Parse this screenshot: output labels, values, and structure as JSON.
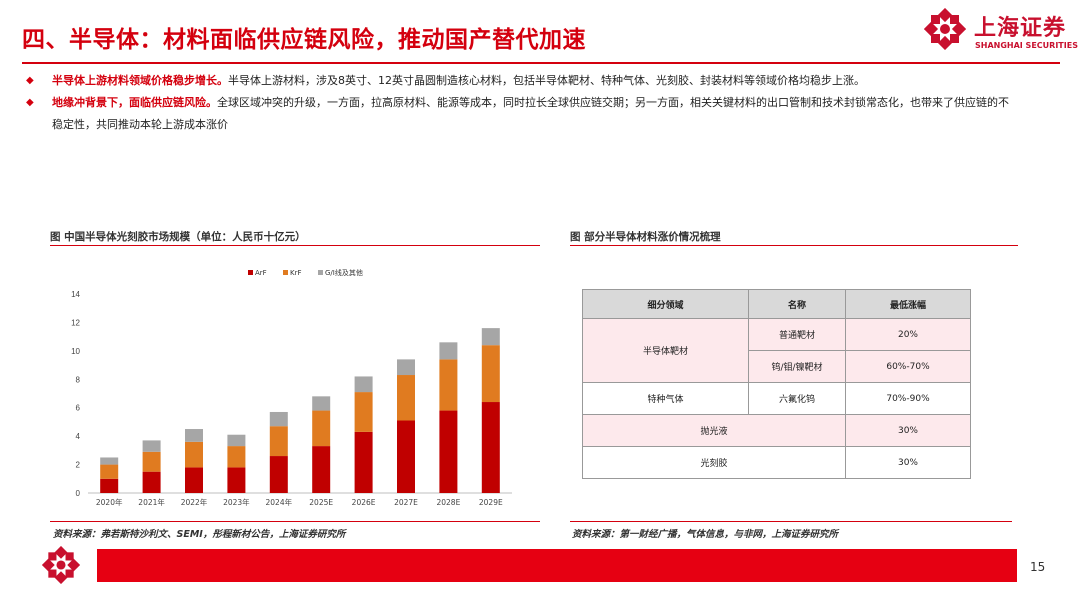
{
  "header": {
    "title": "四、半导体：材料面临供应链风险，推动国产替代加速",
    "logo_cn": "上海证券",
    "logo_en": "SHANGHAI SECURITIES"
  },
  "bullets": [
    {
      "marker": "◆",
      "headline": "半导体上游材料领域价格稳步增长。",
      "text": "半导体上游材料，涉及8英寸、12英寸晶圆制造核心材料，包括半导体靶材、特种气体、光刻胶、封装材料等领域价格均稳步上涨。"
    },
    {
      "marker": "◆",
      "headline": "地缘冲背景下，面临供应链风险。",
      "text": "全球区域冲突的升级，一方面，拉高原材料、能源等成本，同时拉长全球供应链交期；另一方面，相关关键材料的出口管制和技术封锁常态化，也带来了供应链的不稳定性，共同推动本轮上游成本涨价"
    }
  ],
  "left_panel": {
    "caption": "图  中国半导体光刻胶市场规模（单位：人民币十亿元）",
    "source": "资料来源：弗若斯特沙利文、SEMI，彤程新材公告，上海证券研究所"
  },
  "right_panel": {
    "caption": "图  部分半导体材料涨价情况梳理",
    "source": "资料来源：第一财经广播，气体信息，与非网，上海证券研究所",
    "table": {
      "headers": [
        "细分领域",
        "名称",
        "最低涨幅"
      ],
      "groups": [
        {
          "segment": "半导体靶材",
          "rows": [
            {
              "name": "普通靶材",
              "rise": "20%"
            },
            {
              "name": "钨/钼/镍靶材",
              "rise": "60%-70%"
            }
          ]
        },
        {
          "segment": "特种气体",
          "rows": [
            {
              "name": "六氟化钨",
              "rise": "70%-90%"
            }
          ]
        },
        {
          "segment": "抛光液",
          "rows": [
            {
              "name": "",
              "rise": "30%"
            }
          ]
        },
        {
          "segment": "光刻胶",
          "rows": [
            {
              "name": "",
              "rise": "30%"
            }
          ]
        }
      ]
    }
  },
  "chart_data": {
    "type": "bar",
    "stacked": true,
    "categories": [
      "2020年",
      "2021年",
      "2022年",
      "2023年",
      "2024年",
      "2025E",
      "2026E",
      "2027E",
      "2028E",
      "2029E"
    ],
    "series": [
      {
        "name": "ArF",
        "color": "#c00000",
        "values": [
          1.0,
          1.5,
          1.8,
          1.8,
          2.6,
          3.3,
          4.3,
          5.1,
          5.8,
          6.4
        ]
      },
      {
        "name": "KrF",
        "color": "#e07b20",
        "values": [
          1.0,
          1.4,
          1.8,
          1.5,
          2.1,
          2.5,
          2.8,
          3.2,
          3.6,
          4.0
        ]
      },
      {
        "name": "G/I线及其他",
        "color": "#a6a6a6",
        "values": [
          0.5,
          0.8,
          0.9,
          0.8,
          1.0,
          1.0,
          1.1,
          1.1,
          1.2,
          1.2
        ]
      }
    ],
    "ylim": [
      0,
      14
    ],
    "yticks": [
      0,
      2,
      4,
      6,
      8,
      10,
      12,
      14
    ],
    "legend_position": "top",
    "grid": false
  },
  "footer": {
    "page_number": "15"
  }
}
